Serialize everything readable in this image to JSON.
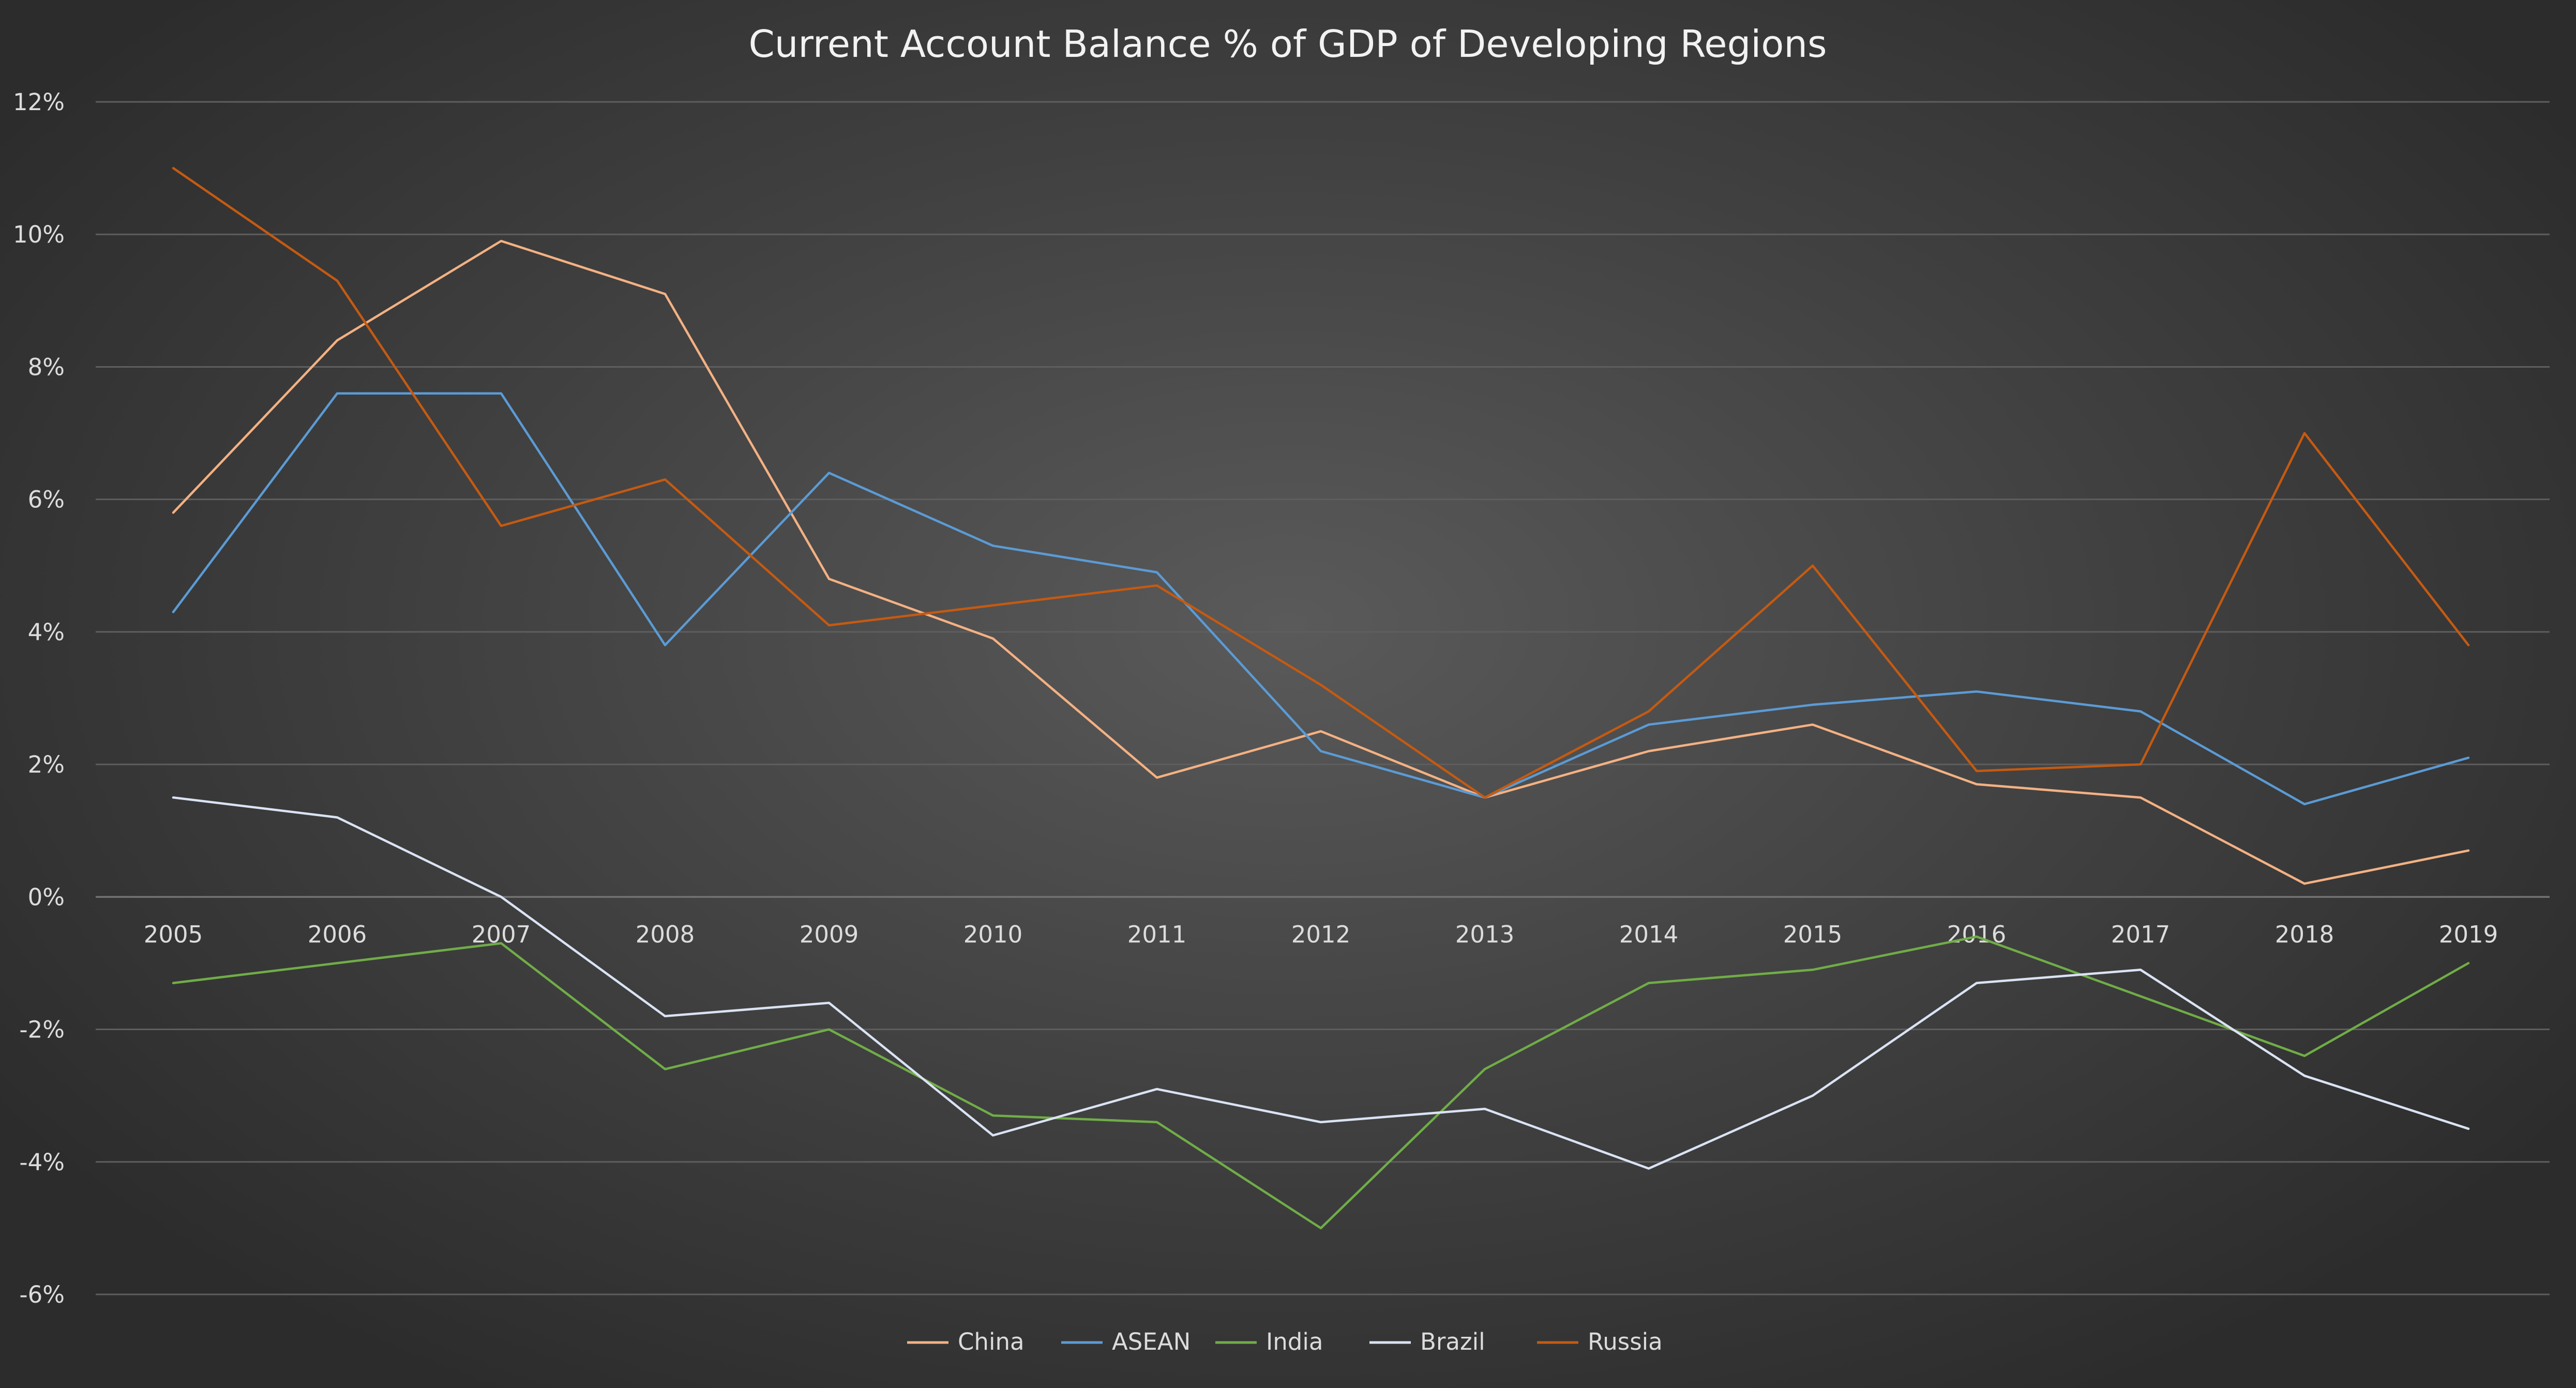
{
  "chart_data": {
    "type": "line",
    "title": "Current Account Balance % of GDP of Developing Regions",
    "xlabel": "",
    "ylabel": "",
    "x": [
      "2005",
      "2006",
      "2007",
      "2008",
      "2009",
      "2010",
      "2011",
      "2012",
      "2013",
      "2014",
      "2015",
      "2016",
      "2017",
      "2018",
      "2019"
    ],
    "ylim": [
      -6,
      12
    ],
    "yticks": [
      12,
      10,
      8,
      6,
      4,
      2,
      0,
      -2,
      -4,
      -6
    ],
    "ytick_labels": [
      "12%",
      "10%",
      "8%",
      "6%",
      "4%",
      "2%",
      "0%",
      "-2%",
      "-4%",
      "-6%"
    ],
    "grid": true,
    "legend_position": "bottom",
    "series": [
      {
        "name": "China",
        "color": "#f4b183",
        "values": [
          5.8,
          8.4,
          9.9,
          9.1,
          4.8,
          3.9,
          1.8,
          2.5,
          1.5,
          2.2,
          2.6,
          1.7,
          1.5,
          0.2,
          0.7
        ]
      },
      {
        "name": "ASEAN",
        "color": "#5b9bd5",
        "values": [
          4.3,
          7.6,
          7.6,
          3.8,
          6.4,
          5.3,
          4.9,
          2.2,
          1.5,
          2.6,
          2.9,
          3.1,
          2.8,
          1.4,
          2.1
        ]
      },
      {
        "name": "India",
        "color": "#70ad47",
        "values": [
          -1.3,
          -1.0,
          -0.7,
          -2.6,
          -2.0,
          -3.3,
          -3.4,
          -5.0,
          -2.6,
          -1.3,
          -1.1,
          -0.6,
          -1.5,
          -2.4,
          -1.0
        ]
      },
      {
        "name": "Brazil",
        "color": "#dae3f3",
        "values": [
          1.5,
          1.2,
          0.0,
          -1.8,
          -1.6,
          -3.6,
          -2.9,
          -3.4,
          -3.2,
          -4.1,
          -3.0,
          -1.3,
          -1.1,
          -2.7,
          -3.5
        ]
      },
      {
        "name": "Russia",
        "color": "#c55a11",
        "values": [
          11.0,
          9.3,
          5.6,
          6.3,
          4.1,
          4.4,
          4.7,
          3.2,
          1.5,
          2.8,
          5.0,
          1.9,
          2.0,
          7.0,
          3.8
        ]
      }
    ]
  }
}
